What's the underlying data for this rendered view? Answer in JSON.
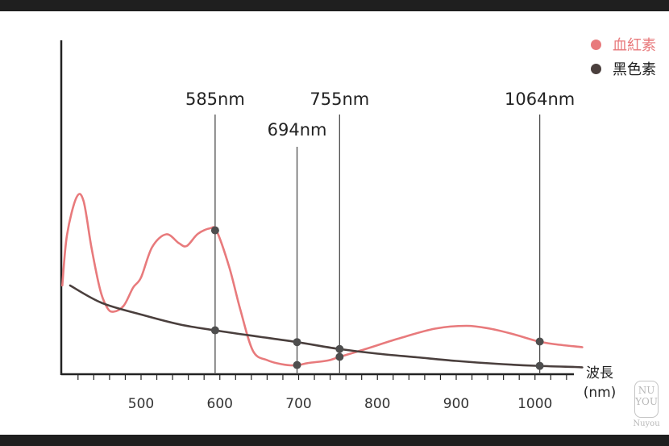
{
  "colors": {
    "hemoglobin": "#e87a7c",
    "melanin": "#4a3f3d",
    "marker": "#4e4e4e",
    "axis": "#222222"
  },
  "chart_data": {
    "type": "line",
    "xlabel": "波長\n(nm)",
    "xlim": [
      410,
      1060
    ],
    "x_ticks": [
      500,
      600,
      700,
      800,
      900,
      1000
    ],
    "x_minor_step": 20,
    "y_axis": "unlabeled",
    "grid": false,
    "legend_position": "top-right",
    "series": [
      {
        "name": "血紅素",
        "color": "#e87a7c",
        "points": [
          [
            400,
            220
          ],
          [
            406,
            345
          ],
          [
            418,
            438
          ],
          [
            427,
            430
          ],
          [
            437,
            315
          ],
          [
            448,
            210
          ],
          [
            457,
            165
          ],
          [
            465,
            155
          ],
          [
            478,
            170
          ],
          [
            490,
            215
          ],
          [
            500,
            240
          ],
          [
            514,
            315
          ],
          [
            532,
            347
          ],
          [
            548,
            325
          ],
          [
            558,
            318
          ],
          [
            572,
            348
          ],
          [
            588,
            362
          ],
          [
            596,
            355
          ],
          [
            612,
            265
          ],
          [
            626,
            160
          ],
          [
            642,
            58
          ],
          [
            660,
            35
          ],
          [
            678,
            25
          ],
          [
            696,
            22
          ],
          [
            713,
            28
          ],
          [
            737,
            34
          ],
          [
            752,
            43
          ],
          [
            784,
            62
          ],
          [
            826,
            88
          ],
          [
            873,
            113
          ],
          [
            913,
            120
          ],
          [
            943,
            113
          ],
          [
            973,
            99
          ],
          [
            1003,
            82
          ],
          [
            1023,
            75
          ],
          [
            1060,
            67
          ]
        ]
      },
      {
        "name": "黑色素",
        "color": "#4a3f3d",
        "points": [
          [
            410,
            220
          ],
          [
            450,
            177
          ],
          [
            500,
            148
          ],
          [
            550,
            123
          ],
          [
            600,
            107
          ],
          [
            650,
            93
          ],
          [
            700,
            79
          ],
          [
            750,
            63
          ],
          [
            800,
            51
          ],
          [
            850,
            42
          ],
          [
            900,
            33
          ],
          [
            950,
            26
          ],
          [
            1000,
            21
          ],
          [
            1050,
            18
          ],
          [
            1060,
            17
          ]
        ]
      }
    ],
    "markers": [
      {
        "label": "585nm",
        "x": 594
      },
      {
        "label": "694nm",
        "x": 698
      },
      {
        "label": "755nm",
        "x": 752
      },
      {
        "label": "1064nm",
        "x": 1006
      }
    ]
  },
  "watermark": {
    "mark_top": "NU",
    "mark_bottom": "YOU",
    "name": "Nuyou"
  }
}
